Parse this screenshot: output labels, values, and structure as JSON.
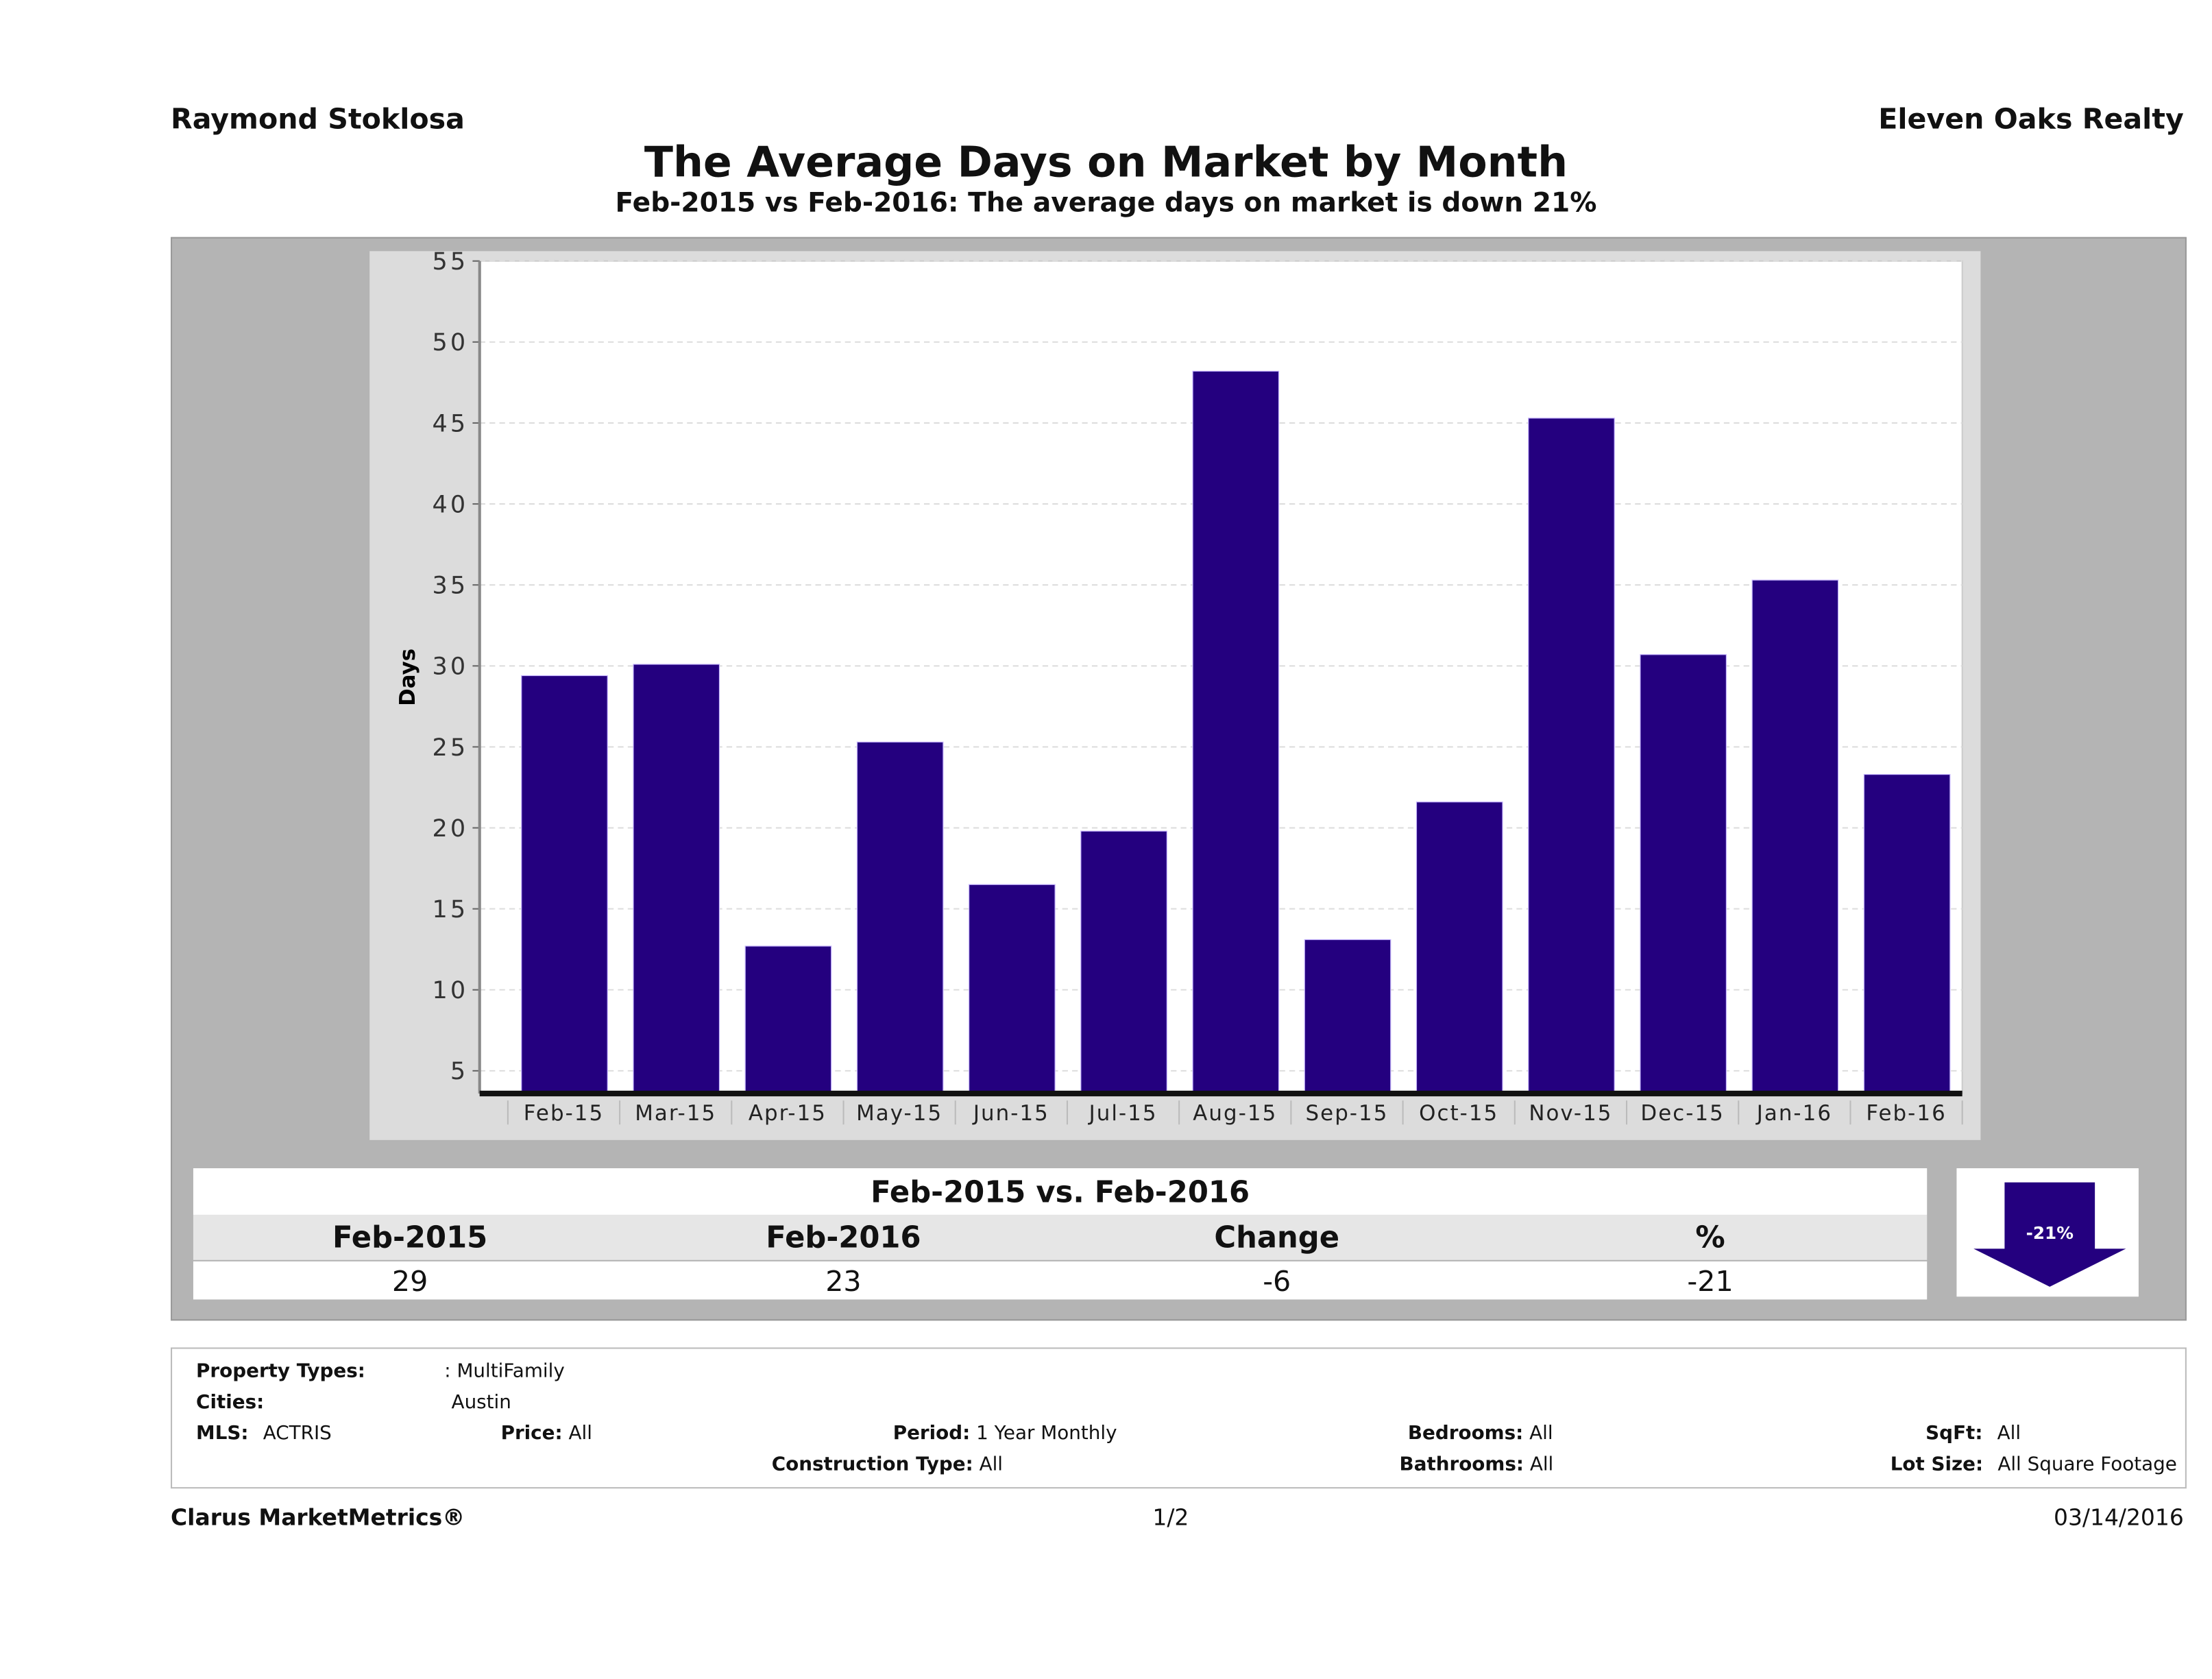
{
  "header": {
    "agent": "Raymond Stoklosa",
    "company": "Eleven Oaks Realty",
    "title": "The Average Days on Market by Month",
    "subtitle": "Feb-2015 vs Feb-2016: The average days on market is down 21%"
  },
  "chart_data": {
    "type": "bar",
    "title": "The Average Days on Market by Month",
    "xlabel": "",
    "ylabel": "Days",
    "categories": [
      "Feb-15",
      "Mar-15",
      "Apr-15",
      "May-15",
      "Jun-15",
      "Jul-15",
      "Aug-15",
      "Sep-15",
      "Oct-15",
      "Nov-15",
      "Dec-15",
      "Jan-16",
      "Feb-16"
    ],
    "values": [
      29.4,
      30.1,
      12.7,
      25.3,
      16.5,
      19.8,
      48.2,
      13.1,
      21.6,
      45.3,
      30.7,
      35.3,
      23.3
    ],
    "ylim": [
      3.6,
      55
    ],
    "yticks": [
      5,
      10,
      15,
      20,
      25,
      30,
      35,
      40,
      45,
      50,
      55
    ],
    "grid": true,
    "bar_color": "#24007f"
  },
  "comparison": {
    "title": "Feb-2015 vs. Feb-2016",
    "headers": [
      "Feb-2015",
      "Feb-2016",
      "Change",
      "%"
    ],
    "values": [
      "29",
      "23",
      "-6",
      "-21"
    ],
    "badge": "-21%"
  },
  "filters": {
    "property_types_label": "Property Types:",
    "property_types": ": MultiFamily",
    "cities_label": "Cities:",
    "cities": "Austin",
    "mls_label": "MLS:",
    "mls": "ACTRIS",
    "price_label": "Price:",
    "price": "All",
    "period_label": "Period:",
    "period": "1 Year Monthly",
    "construction_label": "Construction Type:",
    "construction": "All",
    "bedrooms_label": "Bedrooms:",
    "bedrooms": "All",
    "bathrooms_label": "Bathrooms:",
    "bathrooms": "All",
    "sqft_label": "SqFt:",
    "sqft": "All",
    "lot_label": "Lot Size:",
    "lot": "All Square Footage"
  },
  "footer": {
    "brand": "Clarus MarketMetrics®",
    "page": "1/2",
    "date": "03/14/2016"
  }
}
